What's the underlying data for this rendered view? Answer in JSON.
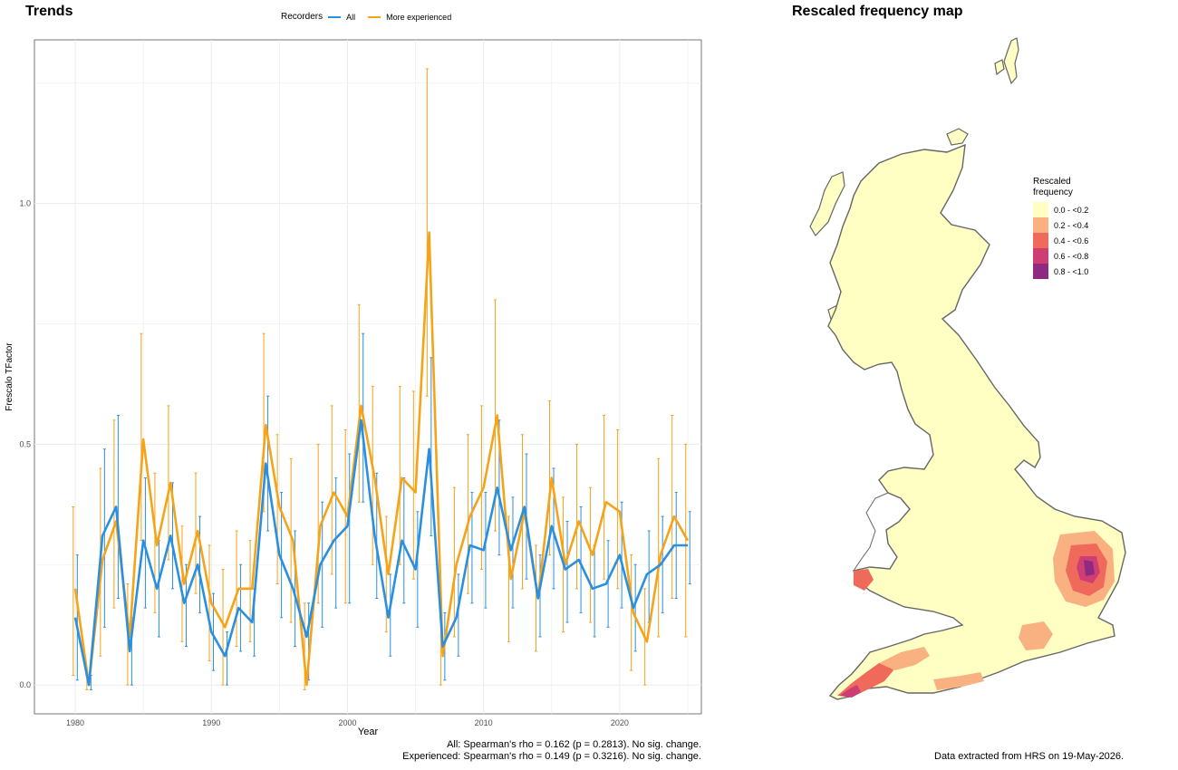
{
  "trends_title": "Trends",
  "map_title": "Rescaled frequency map",
  "legend": {
    "title": "Recorders",
    "items": [
      {
        "label": "All",
        "color": "#2b8fe0"
      },
      {
        "label": "More experienced",
        "color": "#f5a318"
      }
    ]
  },
  "stats": {
    "line1": "All: Spearman's rho = 0.162 (p = 0.2813). No sig. change.",
    "line2": "Experienced: Spearman's rho = 0.149 (p = 0.3216). No sig. change."
  },
  "map_legend": {
    "title": "Rescaled frequency",
    "items": [
      {
        "label": "0.0 - <0.2",
        "color": "#ffffc3"
      },
      {
        "label": "0.2 - <0.4",
        "color": "#f9b182"
      },
      {
        "label": "0.4 - <0.6",
        "color": "#ef6a5a"
      },
      {
        "label": "0.6 - <0.8",
        "color": "#cf3e73"
      },
      {
        "label": "0.8 - <1.0",
        "color": "#8e2a82"
      }
    ]
  },
  "extracted": "Data extracted from HRS on 19-May-2026.",
  "chart_data": {
    "type": "line",
    "xlabel": "Year",
    "ylabel": "Frescalo TFactor",
    "xlim": [
      1977,
      2026
    ],
    "ylim": [
      -0.06,
      1.34
    ],
    "xticks": [
      1980,
      1990,
      2000,
      2010,
      2020
    ],
    "yticks": [
      0.0,
      0.5,
      1.0
    ],
    "ytick_labels": [
      "0.0",
      "0.5",
      "1.0"
    ],
    "grid": true,
    "x": [
      1980,
      1981,
      1982,
      1983,
      1984,
      1985,
      1986,
      1987,
      1988,
      1989,
      1990,
      1991,
      1992,
      1993,
      1994,
      1995,
      1996,
      1997,
      1998,
      1999,
      2000,
      2001,
      2002,
      2003,
      2004,
      2005,
      2006,
      2007,
      2008,
      2009,
      2010,
      2011,
      2012,
      2013,
      2014,
      2015,
      2016,
      2017,
      2018,
      2019,
      2020,
      2021,
      2022,
      2023,
      2024,
      2025
    ],
    "series": [
      {
        "name": "All",
        "color": "#2b8fe0",
        "values": [
          0.14,
          0.0,
          0.31,
          0.37,
          0.07,
          0.3,
          0.2,
          0.31,
          0.17,
          0.25,
          0.11,
          0.06,
          0.16,
          0.13,
          0.46,
          0.27,
          0.2,
          0.1,
          0.25,
          0.3,
          0.33,
          0.55,
          0.31,
          0.14,
          0.3,
          0.24,
          0.49,
          0.08,
          0.14,
          0.29,
          0.28,
          0.41,
          0.28,
          0.37,
          0.18,
          0.33,
          0.24,
          0.26,
          0.2,
          0.21,
          0.27,
          0.16,
          0.23,
          0.25,
          0.29,
          0.29
        ],
        "lower": [
          0.01,
          -0.01,
          0.12,
          0.18,
          0.0,
          0.16,
          0.1,
          0.2,
          0.08,
          0.15,
          0.03,
          0.0,
          0.07,
          0.06,
          0.32,
          0.14,
          0.08,
          0.01,
          0.12,
          0.16,
          0.17,
          0.38,
          0.18,
          0.06,
          0.17,
          0.12,
          0.31,
          0.01,
          0.06,
          0.17,
          0.16,
          0.27,
          0.16,
          0.22,
          0.1,
          0.2,
          0.13,
          0.15,
          0.1,
          0.12,
          0.16,
          0.07,
          0.13,
          0.15,
          0.18,
          0.21
        ],
        "upper": [
          0.27,
          0.02,
          0.49,
          0.56,
          0.14,
          0.43,
          0.3,
          0.42,
          0.25,
          0.35,
          0.19,
          0.11,
          0.25,
          0.2,
          0.6,
          0.4,
          0.32,
          0.17,
          0.38,
          0.43,
          0.48,
          0.73,
          0.44,
          0.23,
          0.43,
          0.36,
          0.68,
          0.15,
          0.23,
          0.4,
          0.4,
          0.55,
          0.39,
          0.48,
          0.27,
          0.45,
          0.34,
          0.37,
          0.29,
          0.3,
          0.38,
          0.25,
          0.32,
          0.35,
          0.4,
          0.36
        ]
      },
      {
        "name": "More experienced",
        "color": "#f5a318",
        "values": [
          0.2,
          0.0,
          0.26,
          0.34,
          0.1,
          0.51,
          0.29,
          0.42,
          0.21,
          0.32,
          0.17,
          0.12,
          0.2,
          0.2,
          0.54,
          0.37,
          0.3,
          0.0,
          0.33,
          0.4,
          0.35,
          0.58,
          0.43,
          0.23,
          0.43,
          0.4,
          0.94,
          0.06,
          0.25,
          0.35,
          0.41,
          0.56,
          0.22,
          0.36,
          0.18,
          0.43,
          0.25,
          0.34,
          0.27,
          0.38,
          0.36,
          0.15,
          0.09,
          0.27,
          0.35,
          0.3
        ],
        "lower": [
          0.02,
          -0.01,
          0.06,
          0.16,
          0.0,
          0.3,
          0.15,
          0.26,
          0.09,
          0.19,
          0.05,
          0.0,
          0.08,
          0.09,
          0.36,
          0.21,
          0.13,
          -0.01,
          0.17,
          0.23,
          0.17,
          0.38,
          0.25,
          0.11,
          0.25,
          0.22,
          0.6,
          0.0,
          0.1,
          0.19,
          0.24,
          0.32,
          0.09,
          0.2,
          0.07,
          0.27,
          0.11,
          0.2,
          0.13,
          0.22,
          0.2,
          0.03,
          0.0,
          0.1,
          0.18,
          0.1
        ],
        "upper": [
          0.37,
          0.02,
          0.45,
          0.55,
          0.21,
          0.73,
          0.44,
          0.58,
          0.33,
          0.44,
          0.29,
          0.24,
          0.32,
          0.3,
          0.73,
          0.52,
          0.47,
          0.17,
          0.5,
          0.58,
          0.53,
          0.79,
          0.62,
          0.35,
          0.62,
          0.61,
          1.28,
          0.14,
          0.41,
          0.52,
          0.58,
          0.8,
          0.35,
          0.52,
          0.29,
          0.59,
          0.39,
          0.5,
          0.41,
          0.56,
          0.53,
          0.27,
          0.2,
          0.47,
          0.56,
          0.5
        ]
      }
    ]
  }
}
